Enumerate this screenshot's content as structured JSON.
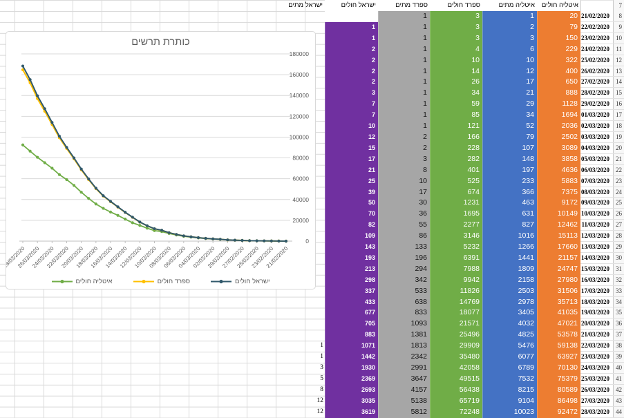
{
  "colors": {
    "israel_cases": "#7030A0",
    "spain_deaths": "#A6A6A6",
    "spain_cases": "#70AD47",
    "italy_deaths": "#4472C4",
    "italy_cases": "#ED7D31",
    "grid": "#d9d9d9",
    "axis_text": "#595959"
  },
  "sheet": {
    "header_row_number": "7",
    "headers": {
      "israel_deaths": "ישראל מתים",
      "israel_cases": "ישראל חולים",
      "spain_deaths": "ספרד מתים",
      "spain_cases": "ספרד חולים",
      "italy_deaths": "איטליה מתים",
      "italy_cases": "איטליה חולים"
    },
    "rows": [
      {
        "n": 8,
        "date": "21/02/2020",
        "israel_deaths": "",
        "israel_cases": "",
        "spain_deaths": "1",
        "spain_cases": "3",
        "italy_deaths": "1",
        "italy_cases": "20"
      },
      {
        "n": 9,
        "date": "22/02/2020",
        "israel_deaths": "",
        "israel_cases": "1",
        "spain_deaths": "1",
        "spain_cases": "3",
        "italy_deaths": "2",
        "italy_cases": "79"
      },
      {
        "n": 10,
        "date": "23/02/2020",
        "israel_deaths": "",
        "israel_cases": "1",
        "spain_deaths": "1",
        "spain_cases": "3",
        "italy_deaths": "3",
        "italy_cases": "150"
      },
      {
        "n": 11,
        "date": "24/02/2020",
        "israel_deaths": "",
        "israel_cases": "2",
        "spain_deaths": "1",
        "spain_cases": "4",
        "italy_deaths": "6",
        "italy_cases": "229"
      },
      {
        "n": 12,
        "date": "25/02/2020",
        "israel_deaths": "",
        "israel_cases": "2",
        "spain_deaths": "1",
        "spain_cases": "10",
        "italy_deaths": "10",
        "italy_cases": "322"
      },
      {
        "n": 13,
        "date": "26/02/2020",
        "israel_deaths": "",
        "israel_cases": "2",
        "spain_deaths": "1",
        "spain_cases": "14",
        "italy_deaths": "12",
        "italy_cases": "400"
      },
      {
        "n": 14,
        "date": "27/02/2020",
        "israel_deaths": "",
        "israel_cases": "2",
        "spain_deaths": "1",
        "spain_cases": "26",
        "italy_deaths": "17",
        "italy_cases": "650"
      },
      {
        "n": 15,
        "date": "28/02/2020",
        "israel_deaths": "",
        "israel_cases": "3",
        "spain_deaths": "1",
        "spain_cases": "34",
        "italy_deaths": "21",
        "italy_cases": "888"
      },
      {
        "n": 16,
        "date": "29/02/2020",
        "israel_deaths": "",
        "israel_cases": "7",
        "spain_deaths": "1",
        "spain_cases": "59",
        "italy_deaths": "29",
        "italy_cases": "1128"
      },
      {
        "n": 17,
        "date": "01/03/2020",
        "israel_deaths": "",
        "israel_cases": "7",
        "spain_deaths": "1",
        "spain_cases": "85",
        "italy_deaths": "34",
        "italy_cases": "1694"
      },
      {
        "n": 18,
        "date": "02/03/2020",
        "israel_deaths": "",
        "israel_cases": "10",
        "spain_deaths": "1",
        "spain_cases": "121",
        "italy_deaths": "52",
        "italy_cases": "2036"
      },
      {
        "n": 19,
        "date": "03/03/2020",
        "israel_deaths": "",
        "israel_cases": "12",
        "spain_deaths": "2",
        "spain_cases": "166",
        "italy_deaths": "79",
        "italy_cases": "2502"
      },
      {
        "n": 20,
        "date": "04/03/2020",
        "israel_deaths": "",
        "israel_cases": "15",
        "spain_deaths": "2",
        "spain_cases": "228",
        "italy_deaths": "107",
        "italy_cases": "3089"
      },
      {
        "n": 21,
        "date": "05/03/2020",
        "israel_deaths": "",
        "israel_cases": "17",
        "spain_deaths": "3",
        "spain_cases": "282",
        "italy_deaths": "148",
        "italy_cases": "3858"
      },
      {
        "n": 22,
        "date": "06/03/2020",
        "israel_deaths": "",
        "israel_cases": "21",
        "spain_deaths": "8",
        "spain_cases": "401",
        "italy_deaths": "197",
        "italy_cases": "4636"
      },
      {
        "n": 23,
        "date": "07/03/2020",
        "israel_deaths": "",
        "israel_cases": "25",
        "spain_deaths": "10",
        "spain_cases": "525",
        "italy_deaths": "233",
        "italy_cases": "5883"
      },
      {
        "n": 24,
        "date": "08/03/2020",
        "israel_deaths": "",
        "israel_cases": "39",
        "spain_deaths": "17",
        "spain_cases": "674",
        "italy_deaths": "366",
        "italy_cases": "7375"
      },
      {
        "n": 25,
        "date": "09/03/2020",
        "israel_deaths": "",
        "israel_cases": "50",
        "spain_deaths": "30",
        "spain_cases": "1231",
        "italy_deaths": "463",
        "italy_cases": "9172"
      },
      {
        "n": 26,
        "date": "10/03/2020",
        "israel_deaths": "",
        "israel_cases": "70",
        "spain_deaths": "36",
        "spain_cases": "1695",
        "italy_deaths": "631",
        "italy_cases": "10149"
      },
      {
        "n": 27,
        "date": "11/03/2020",
        "israel_deaths": "",
        "israel_cases": "82",
        "spain_deaths": "55",
        "spain_cases": "2277",
        "italy_deaths": "827",
        "italy_cases": "12462"
      },
      {
        "n": 28,
        "date": "12/03/2020",
        "israel_deaths": "",
        "israel_cases": "109",
        "spain_deaths": "86",
        "spain_cases": "3146",
        "italy_deaths": "1016",
        "italy_cases": "15113"
      },
      {
        "n": 29,
        "date": "13/03/2020",
        "israel_deaths": "",
        "israel_cases": "143",
        "spain_deaths": "133",
        "spain_cases": "5232",
        "italy_deaths": "1266",
        "italy_cases": "17660"
      },
      {
        "n": 30,
        "date": "14/03/2020",
        "israel_deaths": "",
        "israel_cases": "193",
        "spain_deaths": "196",
        "spain_cases": "6391",
        "italy_deaths": "1441",
        "italy_cases": "21157"
      },
      {
        "n": 31,
        "date": "15/03/2020",
        "israel_deaths": "",
        "israel_cases": "213",
        "spain_deaths": "294",
        "spain_cases": "7988",
        "italy_deaths": "1809",
        "italy_cases": "24747"
      },
      {
        "n": 32,
        "date": "16/03/2020",
        "israel_deaths": "",
        "israel_cases": "298",
        "spain_deaths": "342",
        "spain_cases": "9942",
        "italy_deaths": "2158",
        "italy_cases": "27980"
      },
      {
        "n": 33,
        "date": "17/03/2020",
        "israel_deaths": "",
        "israel_cases": "337",
        "spain_deaths": "533",
        "spain_cases": "11826",
        "italy_deaths": "2503",
        "italy_cases": "31506"
      },
      {
        "n": 34,
        "date": "18/03/2020",
        "israel_deaths": "",
        "israel_cases": "433",
        "spain_deaths": "638",
        "spain_cases": "14769",
        "italy_deaths": "2978",
        "italy_cases": "35713"
      },
      {
        "n": 35,
        "date": "19/03/2020",
        "israel_deaths": "",
        "israel_cases": "677",
        "spain_deaths": "833",
        "spain_cases": "18077",
        "italy_deaths": "3405",
        "italy_cases": "41035"
      },
      {
        "n": 36,
        "date": "20/03/2020",
        "israel_deaths": "",
        "israel_cases": "705",
        "spain_deaths": "1093",
        "spain_cases": "21571",
        "italy_deaths": "4032",
        "italy_cases": "47021"
      },
      {
        "n": 37,
        "date": "21/03/2020",
        "israel_deaths": "",
        "israel_cases": "883",
        "spain_deaths": "1381",
        "spain_cases": "25496",
        "italy_deaths": "4825",
        "italy_cases": "53578"
      },
      {
        "n": 38,
        "date": "22/03/2020",
        "israel_deaths": "1",
        "israel_cases": "1071",
        "spain_deaths": "1813",
        "spain_cases": "29909",
        "italy_deaths": "5476",
        "italy_cases": "59138"
      },
      {
        "n": 39,
        "date": "23/03/2020",
        "israel_deaths": "1",
        "israel_cases": "1442",
        "spain_deaths": "2342",
        "spain_cases": "35480",
        "italy_deaths": "6077",
        "italy_cases": "63927"
      },
      {
        "n": 40,
        "date": "24/03/2020",
        "israel_deaths": "3",
        "israel_cases": "1930",
        "spain_deaths": "2991",
        "spain_cases": "42058",
        "italy_deaths": "6789",
        "italy_cases": "70130"
      },
      {
        "n": 41,
        "date": "25/03/2020",
        "israel_deaths": "5",
        "israel_cases": "2369",
        "spain_deaths": "3647",
        "spain_cases": "49515",
        "italy_deaths": "7532",
        "italy_cases": "75379"
      },
      {
        "n": 42,
        "date": "26/03/2020",
        "israel_deaths": "8",
        "israel_cases": "2693",
        "spain_deaths": "4157",
        "spain_cases": "56438",
        "italy_deaths": "8215",
        "italy_cases": "80589"
      },
      {
        "n": 43,
        "date": "27/03/2020",
        "israel_deaths": "12",
        "israel_cases": "3035",
        "spain_deaths": "5138",
        "spain_cases": "65719",
        "italy_deaths": "9104",
        "italy_cases": "86498"
      },
      {
        "n": 44,
        "date": "28/03/2020",
        "israel_deaths": "12",
        "israel_cases": "3619",
        "spain_deaths": "5812",
        "spain_cases": "72248",
        "italy_deaths": "10023",
        "italy_cases": "92472"
      }
    ]
  },
  "chart_data": {
    "type": "line",
    "stacked": true,
    "title": "כותרת תרשים",
    "xlabel": "",
    "ylabel": "",
    "ylim": [
      0,
      180000
    ],
    "ytick_step": 20000,
    "xtick_every": 2,
    "grid": true,
    "legend_position": "bottom",
    "x_axis_note": "dates plotted newest-to-oldest, left to right",
    "categories": [
      "28/03/2020",
      "27/03/2020",
      "26/03/2020",
      "25/03/2020",
      "24/03/2020",
      "23/03/2020",
      "22/03/2020",
      "21/03/2020",
      "20/03/2020",
      "19/03/2020",
      "18/03/2020",
      "17/03/2020",
      "16/03/2020",
      "15/03/2020",
      "14/03/2020",
      "13/03/2020",
      "12/03/2020",
      "11/03/2020",
      "10/03/2020",
      "09/03/2020",
      "08/03/2020",
      "07/03/2020",
      "06/03/2020",
      "05/03/2020",
      "04/03/2020",
      "03/03/2020",
      "02/03/2020",
      "01/03/2020",
      "29/02/2020",
      "28/02/2020",
      "27/02/2020",
      "26/02/2020",
      "25/02/2020",
      "24/02/2020",
      "23/02/2020",
      "22/02/2020",
      "21/02/2020"
    ],
    "series": [
      {
        "name": "איטליה חולים",
        "color": "#70AD47",
        "values": [
          92472,
          86498,
          80589,
          75379,
          70130,
          63927,
          59138,
          53578,
          47021,
          41035,
          35713,
          31506,
          27980,
          24747,
          21157,
          17660,
          15113,
          12462,
          10149,
          9172,
          7375,
          5883,
          4636,
          3858,
          3089,
          2502,
          2036,
          1694,
          1128,
          888,
          650,
          400,
          322,
          229,
          150,
          79,
          20
        ]
      },
      {
        "name": "ספרד חולים",
        "color": "#FFC000",
        "values": [
          72248,
          65719,
          56438,
          49515,
          42058,
          35480,
          29909,
          25496,
          21571,
          18077,
          14769,
          11826,
          9942,
          7988,
          6391,
          5232,
          3146,
          2277,
          1695,
          1231,
          674,
          525,
          401,
          282,
          228,
          166,
          121,
          85,
          59,
          34,
          26,
          14,
          10,
          4,
          3,
          3,
          3
        ]
      },
      {
        "name": "ישראל חולים",
        "color": "#31596B",
        "values": [
          3619,
          3035,
          2693,
          2369,
          1930,
          1442,
          1071,
          883,
          705,
          677,
          433,
          337,
          298,
          213,
          193,
          143,
          109,
          82,
          70,
          50,
          39,
          25,
          21,
          17,
          15,
          12,
          10,
          7,
          7,
          3,
          2,
          2,
          2,
          2,
          1,
          1,
          0
        ]
      }
    ]
  }
}
